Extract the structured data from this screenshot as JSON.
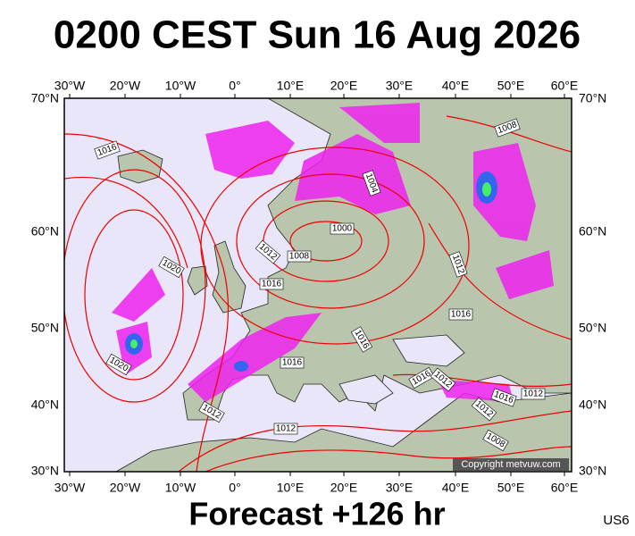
{
  "header": {
    "title": "0200 CEST Sun 16 Aug 2026"
  },
  "axes": {
    "top": [
      "30°W",
      "20°W",
      "10°W",
      "0°",
      "10°E",
      "20°E",
      "30°E",
      "40°E",
      "50°E",
      "60°E"
    ],
    "bottom": [
      "30°W",
      "20°W",
      "10°W",
      "0°",
      "10°E",
      "20°E",
      "30°E",
      "40°E",
      "50°E",
      "60°E"
    ],
    "left": [
      "70°N",
      "60°N",
      "50°N",
      "40°N",
      "30°N"
    ],
    "right": [
      "70°N",
      "60°N",
      "50°N",
      "40°N",
      "30°N"
    ]
  },
  "isobar_labels": [
    "1016",
    "1020",
    "1020",
    "1012",
    "1008",
    "1000",
    "1004",
    "1016",
    "1016",
    "1016",
    "1012",
    "1012",
    "1016",
    "1012",
    "1016",
    "1012",
    "1012",
    "1008",
    "1012",
    "1016",
    "1008"
  ],
  "copyright": "Copyright metvuw.com",
  "footer": {
    "forecast": "Forecast +126 hr",
    "code": "US6"
  }
}
